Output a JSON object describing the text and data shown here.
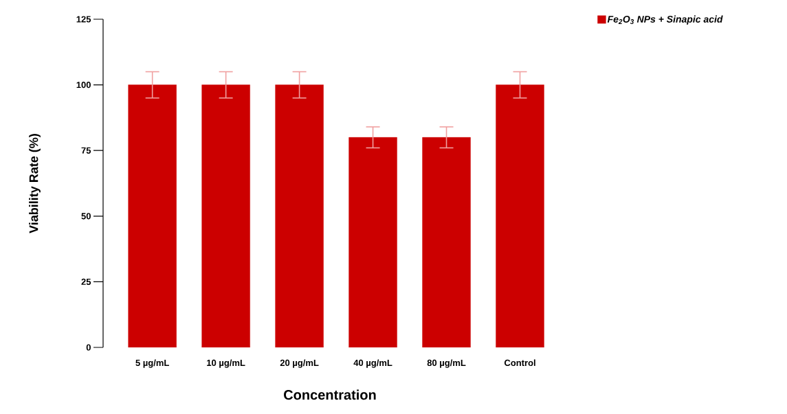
{
  "chart_data": {
    "type": "bar",
    "xlabel": "Concentration",
    "ylabel": "Viability Rate (%)",
    "categories": [
      "5 µg/mL",
      "10 µg/mL",
      "20 µg/mL",
      "40 µg/mL",
      "80 µg/mL",
      "Control"
    ],
    "series": [
      {
        "name": "Fe$_{2}$O$_{3}$ NPs + Sinapic acid",
        "color": "#cc0000",
        "values": [
          100,
          100,
          100,
          80,
          80,
          100
        ],
        "errors": [
          5,
          5,
          5,
          4,
          4,
          5
        ]
      }
    ],
    "ylim": [
      0,
      125
    ],
    "yticks": [
      0,
      25,
      50,
      75,
      100,
      125
    ],
    "legend": "top right"
  }
}
